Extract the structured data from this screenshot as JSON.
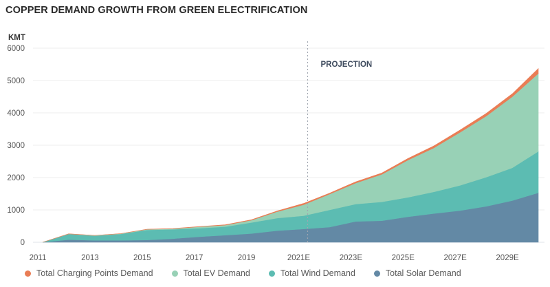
{
  "chart_data": {
    "type": "area",
    "stacked": true,
    "title": "COPPER DEMAND GROWTH FROM GREEN ELECTRIFICATION",
    "ylabel": "KMT",
    "xlabel": "",
    "ylim": [
      0,
      6000
    ],
    "yticks": [
      0,
      1000,
      2000,
      3000,
      4000,
      5000,
      6000
    ],
    "x": [
      "2011",
      "2012",
      "2013",
      "2014",
      "2015",
      "2016",
      "2017",
      "2018",
      "2019",
      "2020",
      "2021E",
      "2022E",
      "2023E",
      "2024E",
      "2025E",
      "2026E",
      "2027E",
      "2028E",
      "2029E",
      "2030E"
    ],
    "xtick_labels": [
      "2011",
      "2013",
      "2015",
      "2017",
      "2019",
      "2021E",
      "2023E",
      "2025E",
      "2027E",
      "2029E"
    ],
    "grid": true,
    "legend_position": "bottom",
    "annotation": {
      "text": "PROJECTION",
      "at_x": "2021E",
      "style": "dashed vertical line"
    },
    "series": [
      {
        "name": "Total Solar Demand",
        "color": "#6389a5",
        "values": [
          0,
          80,
          60,
          60,
          70,
          110,
          170,
          220,
          270,
          360,
          410,
          470,
          645,
          667,
          787,
          890,
          980,
          1110,
          1290,
          1530
        ]
      },
      {
        "name": "Total Wind Demand",
        "color": "#5cbcb2",
        "values": [
          0,
          175,
          140,
          195,
          310,
          290,
          263,
          262,
          340,
          390,
          410,
          530,
          535,
          583,
          603,
          670,
          780,
          900,
          1010,
          1280
        ]
      },
      {
        "name": "Total EV Demand",
        "color": "#98d1b6",
        "values": [
          0,
          5,
          10,
          10,
          20,
          20,
          47,
          48,
          70,
          200,
          340,
          490,
          650,
          850,
          1150,
          1360,
          1640,
          1890,
          2200,
          2410
        ]
      },
      {
        "name": "Total Charging Points Demand",
        "color": "#e97d55",
        "values": [
          0,
          2,
          2,
          3,
          5,
          5,
          5,
          10,
          15,
          20,
          40,
          30,
          40,
          40,
          50,
          60,
          70,
          80,
          90,
          150
        ]
      }
    ],
    "legend": [
      "Total Charging Points Demand",
      "Total EV Demand",
      "Total Wind Demand",
      "Total Solar Demand"
    ]
  }
}
